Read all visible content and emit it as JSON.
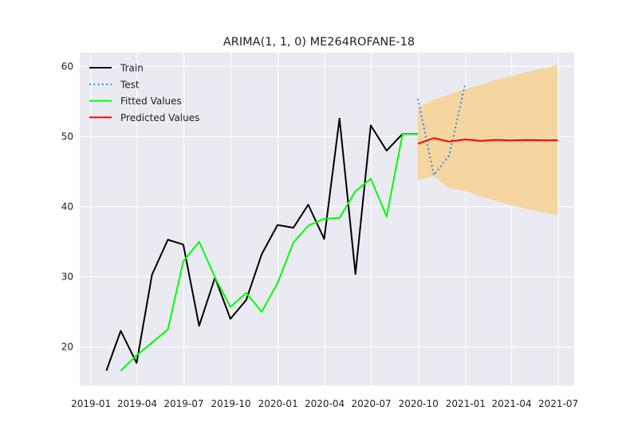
{
  "chart_data": {
    "type": "line",
    "title": "ARIMA(1, 1, 0) ME264ROFANE-18",
    "xlabel": "",
    "ylabel": "",
    "xlim": [
      "2018-12-10",
      "2021-08-01"
    ],
    "ylim": [
      14.5,
      62.0
    ],
    "x_ticks": [
      "2019-01",
      "2019-04",
      "2019-07",
      "2019-10",
      "2020-01",
      "2020-04",
      "2020-07",
      "2020-10",
      "2021-01",
      "2021-04",
      "2021-07"
    ],
    "x_tick_dates": [
      "2019-01-01",
      "2019-04-01",
      "2019-07-01",
      "2019-10-01",
      "2020-01-01",
      "2020-04-01",
      "2020-07-01",
      "2020-10-01",
      "2021-01-01",
      "2021-04-01",
      "2021-07-01"
    ],
    "y_ticks": [
      20,
      30,
      40,
      50,
      60
    ],
    "grid": true,
    "legend_position": "top-left",
    "series": [
      {
        "name": "Train",
        "color": "#000000",
        "style": "solid",
        "x": [
          "2019-01-31",
          "2019-02-28",
          "2019-03-31",
          "2019-04-30",
          "2019-05-31",
          "2019-06-30",
          "2019-07-31",
          "2019-08-31",
          "2019-09-30",
          "2019-10-31",
          "2019-11-30",
          "2019-12-31",
          "2020-01-31",
          "2020-02-29",
          "2020-03-31",
          "2020-04-30",
          "2020-05-31",
          "2020-06-30",
          "2020-07-31",
          "2020-08-31",
          "2020-09-30"
        ],
        "y": [
          16.6,
          22.3,
          17.7,
          30.3,
          35.3,
          34.6,
          23.0,
          29.9,
          24.0,
          26.7,
          33.2,
          37.4,
          37.0,
          40.3,
          35.4,
          52.6,
          30.4,
          51.6,
          48.0,
          50.4,
          50.4
        ]
      },
      {
        "name": "Test",
        "color": "#1e90ff",
        "style": "dotted",
        "x": [
          "2020-09-30",
          "2020-10-31",
          "2020-11-30",
          "2020-12-31"
        ],
        "y": [
          55.4,
          44.5,
          47.3,
          57.5
        ]
      },
      {
        "name": "Fitted Values",
        "color": "#00ff00",
        "style": "solid",
        "x": [
          "2019-02-28",
          "2019-03-31",
          "2019-04-30",
          "2019-05-31",
          "2019-06-30",
          "2019-07-31",
          "2019-08-31",
          "2019-09-30",
          "2019-10-31",
          "2019-11-30",
          "2019-12-31",
          "2020-01-31",
          "2020-02-29",
          "2020-03-31",
          "2020-04-30",
          "2020-05-31",
          "2020-06-30",
          "2020-07-31",
          "2020-08-31",
          "2020-09-30"
        ],
        "y": [
          16.6,
          18.8,
          20.6,
          22.5,
          32.2,
          35.0,
          29.9,
          25.7,
          27.7,
          25.0,
          29.1,
          34.9,
          37.3,
          38.3,
          38.4,
          42.2,
          44.0,
          38.6,
          50.4,
          50.4
        ]
      },
      {
        "name": "Predicted Values",
        "color": "#ff0000",
        "style": "solid",
        "x": [
          "2020-09-30",
          "2020-10-31",
          "2020-11-30",
          "2020-12-31",
          "2021-01-31",
          "2021-02-28",
          "2021-03-31",
          "2021-04-30",
          "2021-05-31",
          "2021-06-30"
        ],
        "y": [
          49.0,
          49.8,
          49.3,
          49.6,
          49.4,
          49.55,
          49.47,
          49.52,
          49.49,
          49.5
        ]
      }
    ],
    "confidence_band": {
      "color": "#f5d5a0",
      "x": [
        "2020-09-30",
        "2020-10-31",
        "2020-11-30",
        "2020-12-31",
        "2021-01-31",
        "2021-02-28",
        "2021-03-31",
        "2021-04-30",
        "2021-05-31",
        "2021-06-30"
      ],
      "lower": [
        43.8,
        44.4,
        42.6,
        42.3,
        41.4,
        40.9,
        40.2,
        39.7,
        39.2,
        38.8
      ],
      "upper": [
        54.1,
        55.3,
        56.0,
        56.8,
        57.4,
        58.1,
        58.6,
        59.2,
        59.7,
        60.2
      ]
    }
  }
}
